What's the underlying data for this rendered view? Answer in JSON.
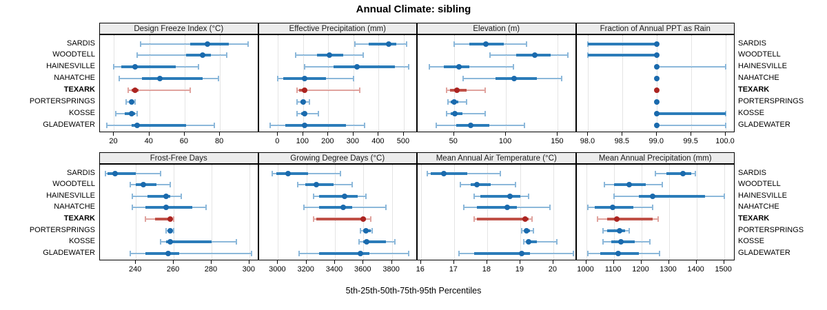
{
  "title": "Annual Climate: sibling",
  "caption": "5th-25th-50th-75th-95th Percentiles",
  "highlight_site": "TEXARK",
  "sites": [
    "SARDIS",
    "WOODTELL",
    "HAINESVILLE",
    "NAHATCHE",
    "TEXARK",
    "PORTERSPRINGS",
    "KOSSE",
    "GLADEWATER"
  ],
  "colors": {
    "blue_dot": "#1a6aad",
    "blue_thick": "#2b7cb9",
    "blue_thin": "#8cb8da",
    "red_dot": "#ab2421",
    "red_thick": "#c05047",
    "red_thin": "#e0a39e",
    "strip_bg": "#ececec",
    "panel_border": "#000000",
    "grid": "#c9c9c9"
  },
  "chart_data": {
    "type": "dotplot-percentiles",
    "percentile_labels": [
      "5th",
      "25th",
      "50th",
      "75th",
      "95th"
    ],
    "legend_note": "thin line = 5th-95th, thick line = 25th-75th, dot = 50th percentile",
    "panels": [
      {
        "id": "design-freeze-index",
        "title": "Design Freeze Index (°C)",
        "xlim": [
          12,
          102
        ],
        "ticks": [
          20,
          40,
          60,
          80
        ],
        "tick_labels": [
          "20",
          "40",
          "60",
          "80"
        ],
        "values": {
          "SARDIS": [
            35,
            63,
            73,
            85,
            96
          ],
          "WOODTELL": [
            33,
            61,
            70,
            75,
            84
          ],
          "HAINESVILLE": [
            20,
            24,
            32,
            55,
            68
          ],
          "NAHATCHE": [
            23,
            36,
            46,
            70,
            79
          ],
          "TEXARK": [
            28,
            30,
            32,
            34,
            63
          ],
          "PORTERSPRINGS": [
            27,
            29,
            30,
            31,
            32
          ],
          "KOSSE": [
            21,
            26,
            30,
            32,
            33
          ],
          "GLADEWATER": [
            16,
            30,
            33,
            61,
            77
          ]
        }
      },
      {
        "id": "effective-precipitation",
        "title": "Effective Precipitation (mm)",
        "xlim": [
          -76,
          555
        ],
        "ticks": [
          0,
          100,
          200,
          300,
          400,
          500
        ],
        "tick_labels": [
          "0",
          "100",
          "200",
          "300",
          "400",
          "500"
        ],
        "values": {
          "SARDIS": [
            305,
            360,
            440,
            470,
            510
          ],
          "WOODTELL": [
            70,
            155,
            205,
            260,
            340
          ],
          "HAINESVILLE": [
            105,
            220,
            315,
            465,
            520
          ],
          "NAHATCHE": [
            0,
            20,
            105,
            190,
            300
          ],
          "TEXARK": [
            75,
            85,
            105,
            115,
            325
          ],
          "PORTERSPRINGS": [
            75,
            90,
            100,
            110,
            125
          ],
          "KOSSE": [
            75,
            92,
            105,
            115,
            160
          ],
          "GLADEWATER": [
            -30,
            30,
            105,
            270,
            345
          ]
        }
      },
      {
        "id": "elevation",
        "title": "Elevation (m)",
        "xlim": [
          15,
          168
        ],
        "ticks": [
          50,
          100,
          150
        ],
        "tick_labels": [
          "50",
          "100",
          "150"
        ],
        "values": {
          "SARDIS": [
            50,
            65,
            81,
            98,
            120
          ],
          "WOODTELL": [
            85,
            110,
            128,
            143,
            160
          ],
          "HAINESVILLE": [
            26,
            40,
            55,
            65,
            107
          ],
          "NAHATCHE": [
            59,
            90,
            108,
            130,
            154
          ],
          "TEXARK": [
            43,
            46,
            53,
            62,
            80
          ],
          "PORTERSPRINGS": [
            44,
            47,
            50,
            54,
            62
          ],
          "KOSSE": [
            43,
            47,
            51,
            58,
            80
          ],
          "GLADEWATER": [
            33,
            52,
            66,
            84,
            118
          ]
        }
      },
      {
        "id": "fraction-annual-ppt-rain",
        "title": "Fraction of Annual PPT as Rain",
        "xlim": [
          97.83,
          100.14
        ],
        "ticks": [
          98.0,
          98.5,
          99.0,
          99.5,
          100.0
        ],
        "tick_labels": [
          "98.0",
          "98.5",
          "99.0",
          "99.5",
          "100.0"
        ],
        "values": {
          "SARDIS": [
            98,
            98,
            99,
            99,
            99
          ],
          "WOODTELL": [
            98,
            98,
            99,
            99,
            99
          ],
          "HAINESVILLE": [
            99,
            99,
            99,
            99,
            100
          ],
          "NAHATCHE": [
            99,
            99,
            99,
            99,
            99
          ],
          "TEXARK": [
            99,
            99,
            99,
            99,
            99
          ],
          "PORTERSPRINGS": [
            99,
            99,
            99,
            99,
            99
          ],
          "KOSSE": [
            99,
            99,
            99,
            100,
            100
          ],
          "GLADEWATER": [
            99,
            99,
            99,
            99,
            100
          ]
        }
      },
      {
        "id": "frost-free-days",
        "title": "Frost-Free Days",
        "xlim": [
          221,
          305
        ],
        "ticks": [
          240,
          260,
          280,
          300
        ],
        "tick_labels": [
          "240",
          "260",
          "280",
          "300"
        ],
        "values": {
          "SARDIS": [
            224,
            225,
            229,
            240,
            253
          ],
          "WOODTELL": [
            237,
            240,
            244,
            251,
            258
          ],
          "HAINESVILLE": [
            238,
            246,
            256,
            258,
            264
          ],
          "NAHATCHE": [
            238,
            245,
            256,
            270,
            277
          ],
          "TEXARK": [
            245,
            250,
            258,
            259,
            260
          ],
          "PORTERSPRINGS": [
            256,
            257,
            258,
            259,
            260
          ],
          "KOSSE": [
            253,
            256,
            258,
            280,
            293
          ],
          "GLADEWATER": [
            237,
            245,
            257,
            263,
            301
          ]
        }
      },
      {
        "id": "growing-degree-days",
        "title": "Growing Degree Days (°C)",
        "xlim": [
          2865,
          3981
        ],
        "ticks": [
          3000,
          3200,
          3400,
          3600,
          3800
        ],
        "tick_labels": [
          "3000",
          "3200",
          "3400",
          "3600",
          "3800"
        ],
        "values": {
          "SARDIS": [
            2960,
            2990,
            3070,
            3210,
            3440
          ],
          "WOODTELL": [
            3140,
            3190,
            3270,
            3390,
            3520
          ],
          "HAINESVILLE": [
            3250,
            3290,
            3470,
            3560,
            3620
          ],
          "NAHATCHE": [
            3180,
            3290,
            3460,
            3520,
            3760
          ],
          "TEXARK": [
            3250,
            3270,
            3600,
            3620,
            3650
          ],
          "PORTERSPRINGS": [
            3580,
            3600,
            3620,
            3650,
            3660
          ],
          "KOSSE": [
            3570,
            3600,
            3625,
            3760,
            3820
          ],
          "GLADEWATER": [
            3150,
            3290,
            3580,
            3640,
            3920
          ]
        }
      },
      {
        "id": "mean-annual-air-temperature",
        "title": "Mean Annual Air Temperature (°C)",
        "xlim": [
          15.9,
          20.7
        ],
        "ticks": [
          16,
          17,
          18,
          19,
          20
        ],
        "tick_labels": [
          "16",
          "17",
          "18",
          "19",
          "20"
        ],
        "values": {
          "SARDIS": [
            16.2,
            16.3,
            16.7,
            17.4,
            18.4
          ],
          "WOODTELL": [
            17.2,
            17.5,
            17.7,
            18.1,
            18.85
          ],
          "HAINESVILLE": [
            17.6,
            17.8,
            18.7,
            19.0,
            19.25
          ],
          "NAHATCHE": [
            17.3,
            17.7,
            18.6,
            18.9,
            19.9
          ],
          "TEXARK": [
            17.6,
            17.7,
            19.15,
            19.25,
            19.35
          ],
          "PORTERSPRINGS": [
            19.05,
            19.15,
            19.2,
            19.3,
            19.4
          ],
          "KOSSE": [
            19.1,
            19.2,
            19.25,
            19.5,
            20.1
          ],
          "GLADEWATER": [
            17.15,
            17.6,
            19.05,
            19.3,
            20.6
          ]
        }
      },
      {
        "id": "mean-annual-precipitation",
        "title": "Mean Annual Precipitation (mm)",
        "xlim": [
          965,
          1541
        ],
        "ticks": [
          1000,
          1100,
          1200,
          1300,
          1400,
          1500
        ],
        "tick_labels": [
          "1000",
          "1100",
          "1200",
          "1300",
          "1400",
          "1500"
        ],
        "values": {
          "SARDIS": [
            1250,
            1290,
            1350,
            1380,
            1395
          ],
          "WOODTELL": [
            1065,
            1100,
            1155,
            1215,
            1275
          ],
          "HAINESVILLE": [
            1100,
            1190,
            1240,
            1430,
            1500
          ],
          "NAHATCHE": [
            1005,
            1030,
            1095,
            1170,
            1240
          ],
          "TEXARK": [
            1040,
            1075,
            1110,
            1240,
            1260
          ],
          "PORTERSPRINGS": [
            1060,
            1075,
            1120,
            1140,
            1155
          ],
          "KOSSE": [
            1060,
            1090,
            1125,
            1175,
            1230
          ],
          "GLADEWATER": [
            1005,
            1050,
            1115,
            1190,
            1265
          ]
        }
      }
    ]
  }
}
